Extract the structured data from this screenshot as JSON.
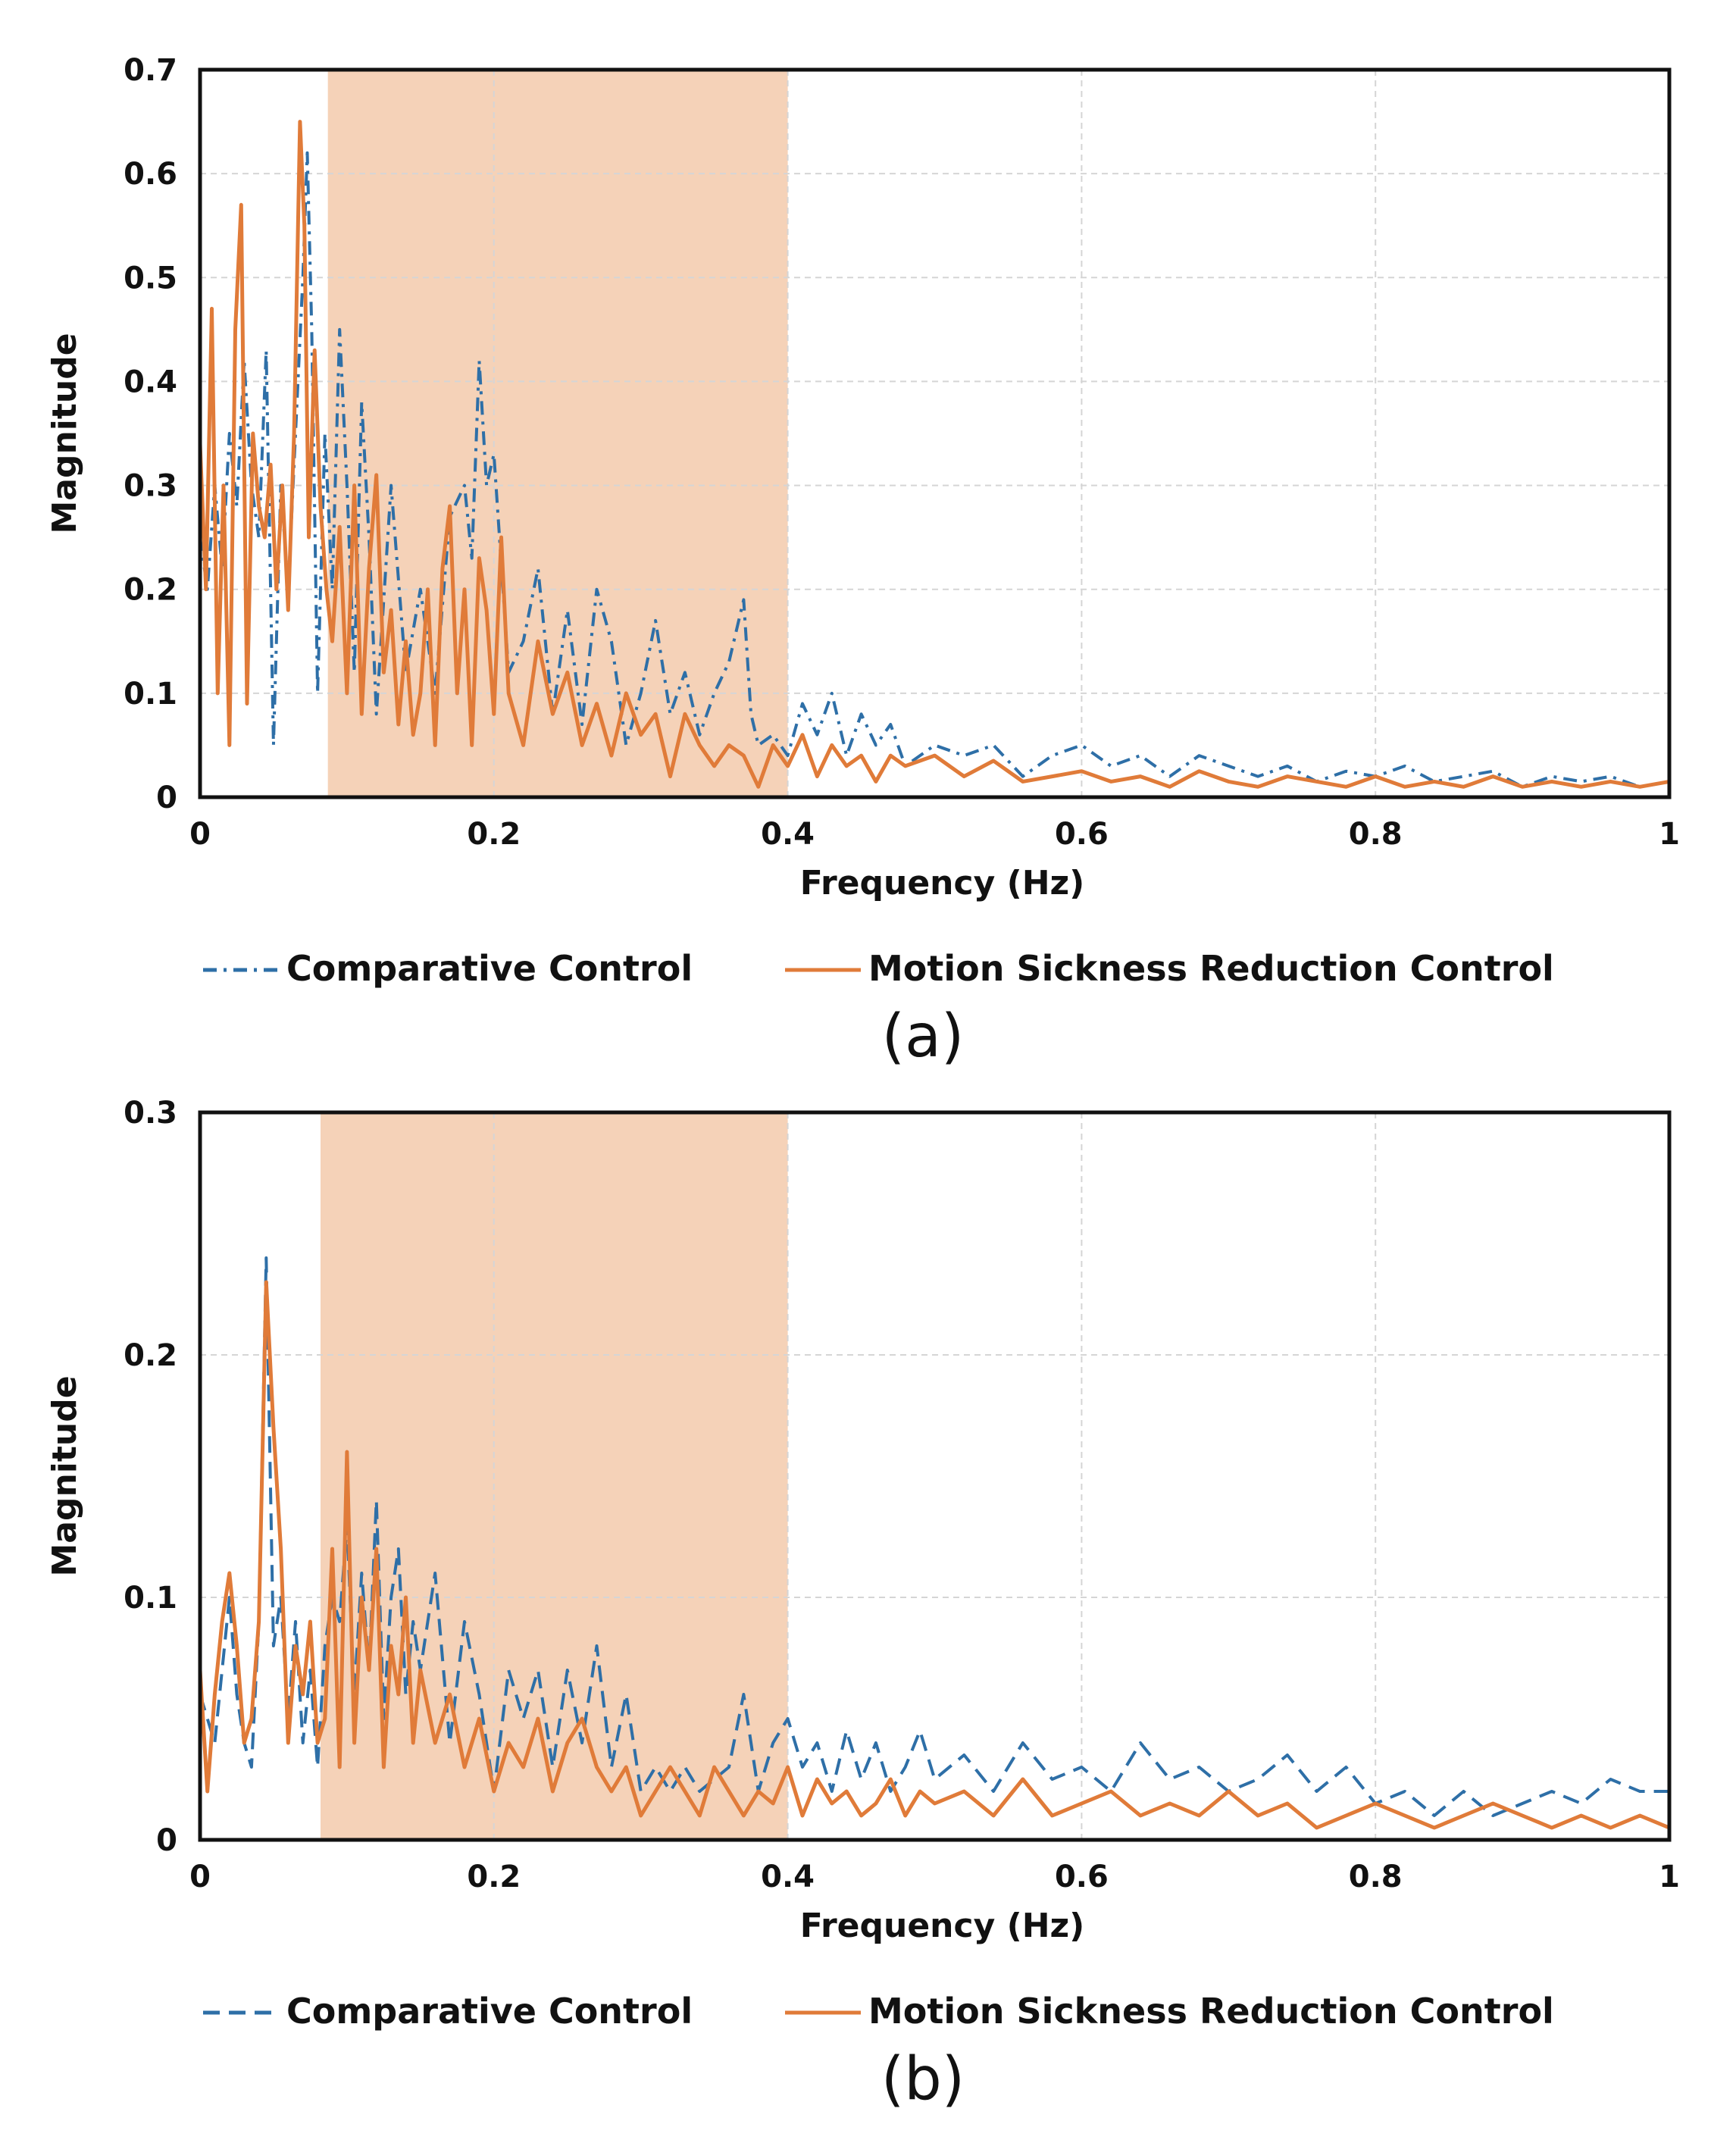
{
  "colors": {
    "comparative": "#2E6FA7",
    "motion_sickness": "#E07B39",
    "highlight_band": "#F5D2B8",
    "grid": "#D5D5D5",
    "frame": "#111111"
  },
  "chart_data": [
    {
      "type": "line",
      "panel_label": "(a)",
      "xlabel": "Frequency (Hz)",
      "ylabel": "Magnitude",
      "xlim": [
        0,
        1
      ],
      "ylim": [
        0,
        0.7
      ],
      "x_ticks": [
        0,
        0.2,
        0.4,
        0.6,
        0.8,
        1
      ],
      "x_tick_labels": [
        "0",
        "0.2",
        "0.4",
        "0.6",
        "0.8",
        "1"
      ],
      "y_ticks": [
        0,
        0.1,
        0.2,
        0.3,
        0.4,
        0.5,
        0.6,
        0.7
      ],
      "y_tick_labels": [
        "0",
        "0.1",
        "0.2",
        "0.3",
        "0.4",
        "0.5",
        "0.6",
        "0.7"
      ],
      "grid": true,
      "highlight_band": [
        0.087,
        0.4
      ],
      "legend_position": "bottom",
      "series": [
        {
          "name": "Comparative Control",
          "style": "dash-dot",
          "x": [
            0,
            0.005,
            0.01,
            0.015,
            0.02,
            0.025,
            0.03,
            0.035,
            0.04,
            0.045,
            0.05,
            0.055,
            0.06,
            0.065,
            0.07,
            0.073,
            0.076,
            0.08,
            0.085,
            0.09,
            0.095,
            0.1,
            0.105,
            0.11,
            0.115,
            0.12,
            0.13,
            0.14,
            0.15,
            0.16,
            0.17,
            0.18,
            0.185,
            0.19,
            0.195,
            0.2,
            0.21,
            0.22,
            0.23,
            0.24,
            0.25,
            0.26,
            0.27,
            0.28,
            0.29,
            0.3,
            0.31,
            0.32,
            0.33,
            0.34,
            0.35,
            0.36,
            0.37,
            0.375,
            0.38,
            0.39,
            0.4,
            0.41,
            0.42,
            0.43,
            0.44,
            0.45,
            0.46,
            0.47,
            0.48,
            0.5,
            0.52,
            0.54,
            0.56,
            0.58,
            0.6,
            0.62,
            0.64,
            0.66,
            0.68,
            0.7,
            0.72,
            0.74,
            0.76,
            0.78,
            0.8,
            0.82,
            0.84,
            0.86,
            0.88,
            0.9,
            0.92,
            0.94,
            0.96,
            0.98,
            1
          ],
          "y": [
            0.25,
            0.2,
            0.3,
            0.22,
            0.35,
            0.28,
            0.42,
            0.3,
            0.25,
            0.43,
            0.05,
            0.3,
            0.2,
            0.35,
            0.5,
            0.62,
            0.45,
            0.1,
            0.35,
            0.2,
            0.45,
            0.3,
            0.12,
            0.38,
            0.25,
            0.08,
            0.3,
            0.12,
            0.2,
            0.1,
            0.27,
            0.3,
            0.23,
            0.42,
            0.3,
            0.33,
            0.12,
            0.15,
            0.22,
            0.08,
            0.18,
            0.07,
            0.2,
            0.15,
            0.05,
            0.1,
            0.17,
            0.08,
            0.12,
            0.06,
            0.1,
            0.13,
            0.19,
            0.08,
            0.05,
            0.06,
            0.04,
            0.09,
            0.06,
            0.1,
            0.04,
            0.08,
            0.05,
            0.07,
            0.03,
            0.05,
            0.04,
            0.05,
            0.02,
            0.04,
            0.05,
            0.03,
            0.04,
            0.02,
            0.04,
            0.03,
            0.02,
            0.03,
            0.015,
            0.025,
            0.02,
            0.03,
            0.015,
            0.02,
            0.025,
            0.01,
            0.02,
            0.015,
            0.02,
            0.01,
            0.015
          ]
        },
        {
          "name": "Motion Sickness Reduction Control",
          "style": "solid",
          "x": [
            0,
            0.004,
            0.008,
            0.012,
            0.016,
            0.02,
            0.024,
            0.028,
            0.032,
            0.036,
            0.04,
            0.044,
            0.048,
            0.052,
            0.056,
            0.06,
            0.064,
            0.068,
            0.071,
            0.074,
            0.078,
            0.082,
            0.086,
            0.09,
            0.095,
            0.1,
            0.105,
            0.11,
            0.115,
            0.12,
            0.125,
            0.13,
            0.135,
            0.14,
            0.145,
            0.15,
            0.155,
            0.16,
            0.165,
            0.17,
            0.175,
            0.18,
            0.185,
            0.19,
            0.195,
            0.2,
            0.205,
            0.21,
            0.22,
            0.23,
            0.24,
            0.25,
            0.26,
            0.27,
            0.28,
            0.29,
            0.3,
            0.31,
            0.32,
            0.33,
            0.34,
            0.35,
            0.36,
            0.37,
            0.38,
            0.39,
            0.4,
            0.41,
            0.42,
            0.43,
            0.44,
            0.45,
            0.46,
            0.47,
            0.48,
            0.5,
            0.52,
            0.54,
            0.56,
            0.58,
            0.6,
            0.62,
            0.64,
            0.66,
            0.68,
            0.7,
            0.72,
            0.74,
            0.76,
            0.78,
            0.8,
            0.82,
            0.84,
            0.86,
            0.88,
            0.9,
            0.92,
            0.94,
            0.96,
            0.98,
            1
          ],
          "y": [
            0.34,
            0.2,
            0.47,
            0.1,
            0.3,
            0.05,
            0.45,
            0.57,
            0.09,
            0.35,
            0.28,
            0.25,
            0.32,
            0.2,
            0.3,
            0.18,
            0.35,
            0.65,
            0.55,
            0.25,
            0.43,
            0.28,
            0.2,
            0.15,
            0.26,
            0.1,
            0.3,
            0.08,
            0.22,
            0.31,
            0.12,
            0.18,
            0.07,
            0.15,
            0.06,
            0.1,
            0.2,
            0.05,
            0.22,
            0.28,
            0.1,
            0.2,
            0.05,
            0.23,
            0.18,
            0.08,
            0.25,
            0.1,
            0.05,
            0.15,
            0.08,
            0.12,
            0.05,
            0.09,
            0.04,
            0.1,
            0.06,
            0.08,
            0.02,
            0.08,
            0.05,
            0.03,
            0.05,
            0.04,
            0.01,
            0.05,
            0.03,
            0.06,
            0.02,
            0.05,
            0.03,
            0.04,
            0.015,
            0.04,
            0.03,
            0.04,
            0.02,
            0.035,
            0.015,
            0.02,
            0.025,
            0.015,
            0.02,
            0.01,
            0.025,
            0.015,
            0.01,
            0.02,
            0.015,
            0.01,
            0.02,
            0.01,
            0.015,
            0.01,
            0.02,
            0.01,
            0.015,
            0.01,
            0.015,
            0.01,
            0.015
          ]
        }
      ]
    },
    {
      "type": "line",
      "panel_label": "(b)",
      "xlabel": "Frequency (Hz)",
      "ylabel": "Magnitude",
      "xlim": [
        0,
        1
      ],
      "ylim": [
        0,
        0.3
      ],
      "x_ticks": [
        0,
        0.2,
        0.4,
        0.6,
        0.8,
        1
      ],
      "x_tick_labels": [
        "0",
        "0.2",
        "0.4",
        "0.6",
        "0.8",
        "1"
      ],
      "y_ticks": [
        0,
        0.1,
        0.2,
        0.3
      ],
      "y_tick_labels": [
        "0",
        "0.1",
        "0.2",
        "0.3"
      ],
      "grid": true,
      "highlight_band": [
        0.082,
        0.4
      ],
      "legend_position": "bottom",
      "series": [
        {
          "name": "Comparative Control",
          "style": "dashed",
          "x": [
            0,
            0.005,
            0.01,
            0.015,
            0.02,
            0.025,
            0.03,
            0.035,
            0.04,
            0.045,
            0.05,
            0.055,
            0.06,
            0.065,
            0.07,
            0.075,
            0.08,
            0.085,
            0.09,
            0.095,
            0.1,
            0.105,
            0.11,
            0.115,
            0.12,
            0.125,
            0.13,
            0.135,
            0.14,
            0.145,
            0.15,
            0.16,
            0.17,
            0.18,
            0.19,
            0.2,
            0.21,
            0.22,
            0.23,
            0.24,
            0.25,
            0.26,
            0.27,
            0.28,
            0.29,
            0.3,
            0.31,
            0.32,
            0.33,
            0.34,
            0.35,
            0.36,
            0.37,
            0.38,
            0.39,
            0.4,
            0.41,
            0.42,
            0.43,
            0.44,
            0.45,
            0.46,
            0.47,
            0.48,
            0.49,
            0.5,
            0.52,
            0.54,
            0.56,
            0.58,
            0.6,
            0.62,
            0.64,
            0.66,
            0.68,
            0.7,
            0.72,
            0.74,
            0.76,
            0.78,
            0.8,
            0.82,
            0.84,
            0.86,
            0.88,
            0.9,
            0.92,
            0.94,
            0.96,
            0.98,
            1
          ],
          "y": [
            0.06,
            0.05,
            0.04,
            0.07,
            0.1,
            0.06,
            0.04,
            0.03,
            0.09,
            0.24,
            0.08,
            0.1,
            0.05,
            0.09,
            0.04,
            0.07,
            0.03,
            0.08,
            0.1,
            0.09,
            0.13,
            0.06,
            0.11,
            0.07,
            0.14,
            0.05,
            0.1,
            0.12,
            0.06,
            0.09,
            0.07,
            0.11,
            0.04,
            0.09,
            0.06,
            0.02,
            0.07,
            0.05,
            0.07,
            0.03,
            0.07,
            0.04,
            0.08,
            0.03,
            0.06,
            0.02,
            0.03,
            0.02,
            0.03,
            0.02,
            0.025,
            0.03,
            0.06,
            0.02,
            0.04,
            0.05,
            0.03,
            0.04,
            0.02,
            0.045,
            0.025,
            0.04,
            0.02,
            0.03,
            0.045,
            0.025,
            0.035,
            0.02,
            0.04,
            0.025,
            0.03,
            0.02,
            0.04,
            0.025,
            0.03,
            0.02,
            0.025,
            0.035,
            0.02,
            0.03,
            0.015,
            0.02,
            0.01,
            0.02,
            0.01,
            0.015,
            0.02,
            0.015,
            0.025,
            0.02,
            0.02
          ]
        },
        {
          "name": "Motion Sickness Reduction Control",
          "style": "solid",
          "x": [
            0,
            0.005,
            0.01,
            0.015,
            0.02,
            0.025,
            0.03,
            0.035,
            0.04,
            0.045,
            0.05,
            0.055,
            0.06,
            0.065,
            0.07,
            0.075,
            0.08,
            0.085,
            0.09,
            0.095,
            0.1,
            0.105,
            0.11,
            0.115,
            0.12,
            0.125,
            0.13,
            0.135,
            0.14,
            0.145,
            0.15,
            0.16,
            0.17,
            0.18,
            0.19,
            0.2,
            0.21,
            0.22,
            0.23,
            0.24,
            0.25,
            0.26,
            0.27,
            0.28,
            0.29,
            0.3,
            0.31,
            0.32,
            0.33,
            0.34,
            0.35,
            0.36,
            0.37,
            0.38,
            0.39,
            0.4,
            0.41,
            0.42,
            0.43,
            0.44,
            0.45,
            0.46,
            0.47,
            0.48,
            0.49,
            0.5,
            0.52,
            0.54,
            0.56,
            0.58,
            0.6,
            0.62,
            0.64,
            0.66,
            0.68,
            0.7,
            0.72,
            0.74,
            0.76,
            0.78,
            0.8,
            0.82,
            0.84,
            0.86,
            0.88,
            0.9,
            0.92,
            0.94,
            0.96,
            0.98,
            1
          ],
          "y": [
            0.07,
            0.02,
            0.06,
            0.09,
            0.11,
            0.08,
            0.04,
            0.05,
            0.09,
            0.23,
            0.17,
            0.12,
            0.04,
            0.08,
            0.06,
            0.09,
            0.04,
            0.05,
            0.12,
            0.03,
            0.16,
            0.04,
            0.1,
            0.07,
            0.12,
            0.03,
            0.08,
            0.06,
            0.1,
            0.04,
            0.07,
            0.04,
            0.06,
            0.03,
            0.05,
            0.02,
            0.04,
            0.03,
            0.05,
            0.02,
            0.04,
            0.05,
            0.03,
            0.02,
            0.03,
            0.01,
            0.02,
            0.03,
            0.02,
            0.01,
            0.03,
            0.02,
            0.01,
            0.02,
            0.015,
            0.03,
            0.01,
            0.025,
            0.015,
            0.02,
            0.01,
            0.015,
            0.025,
            0.01,
            0.02,
            0.015,
            0.02,
            0.01,
            0.025,
            0.01,
            0.015,
            0.02,
            0.01,
            0.015,
            0.01,
            0.02,
            0.01,
            0.015,
            0.005,
            0.01,
            0.015,
            0.01,
            0.005,
            0.01,
            0.015,
            0.01,
            0.005,
            0.01,
            0.005,
            0.01,
            0.005
          ]
        }
      ]
    }
  ]
}
